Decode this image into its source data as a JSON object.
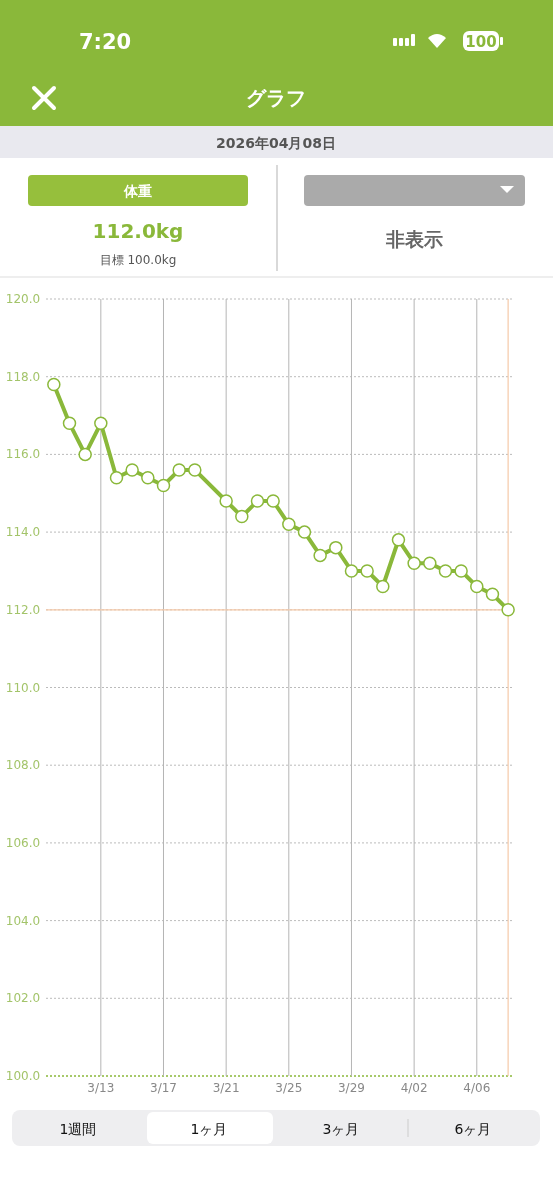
{
  "chart_data": {
    "type": "line",
    "title": "グラフ",
    "subtitle": "2026年04月08日",
    "annotations": [
      "7:20",
      "100",
      "体重",
      "112.0kg",
      "目標 100.0kg",
      "非表示",
      "1週間",
      "1ヶ月",
      "3ヶ月",
      "6ヶ月"
    ],
    "series": [
      {
        "color": "#8ab83a",
        "x": [
          "2026-03-10",
          "2026-03-11",
          "2026-03-12",
          "2026-03-13",
          "2026-03-14",
          "2026-03-15",
          "2026-03-16",
          "2026-03-17",
          "2026-03-18",
          "2026-03-19",
          "2026-03-21",
          "2026-03-22",
          "2026-03-23",
          "2026-03-24",
          "2026-03-25",
          "2026-03-26",
          "2026-03-27",
          "2026-03-28",
          "2026-03-29",
          "2026-03-30",
          "2026-03-31",
          "2026-04-01",
          "2026-04-02",
          "2026-04-03",
          "2026-04-04",
          "2026-04-05",
          "2026-04-06",
          "2026-04-07",
          "2026-04-08"
        ],
        "values": [
          117.8,
          116.8,
          116.0,
          116.8,
          115.4,
          115.6,
          115.4,
          115.2,
          115.6,
          115.6,
          114.8,
          114.4,
          114.8,
          114.8,
          114.2,
          114.0,
          113.4,
          113.6,
          113.0,
          113.0,
          112.6,
          113.8,
          113.2,
          113.2,
          113.0,
          113.0,
          112.6,
          112.4,
          112.0
        ]
      }
    ],
    "xlim": [
      "2026-03-09T12:00",
      "2026-04-08T09:00"
    ],
    "xticks": [
      {
        "value": "2026-03-13",
        "label": "3/13"
      },
      {
        "value": "2026-03-17",
        "label": "3/17"
      },
      {
        "value": "2026-03-21",
        "label": "3/21"
      },
      {
        "value": "2026-03-25",
        "label": "3/25"
      },
      {
        "value": "2026-03-29",
        "label": "3/29"
      },
      {
        "value": "2026-04-02",
        "label": "4/02"
      },
      {
        "value": "2026-04-06",
        "label": "4/06"
      }
    ],
    "ylim": [
      100,
      120
    ],
    "yticks": [
      {
        "value": 100,
        "label": "100.0"
      },
      {
        "value": 102,
        "label": "102.0"
      },
      {
        "value": 104,
        "label": "104.0"
      },
      {
        "value": 106,
        "label": "106.0"
      },
      {
        "value": 108,
        "label": "108.0"
      },
      {
        "value": 110,
        "label": "110.0"
      },
      {
        "value": 112,
        "label": "112.0"
      },
      {
        "value": 114,
        "label": "114.0"
      },
      {
        "value": 116,
        "label": "116.0"
      },
      {
        "value": 118,
        "label": "118.0"
      },
      {
        "value": 120,
        "label": "120.0"
      }
    ],
    "ref_lines": [
      {
        "axis": "y",
        "value": 112,
        "color": "#f5c9a8"
      },
      {
        "axis": "x",
        "value": "2026-04-08",
        "color": "#f5c9a8"
      }
    ],
    "grid": true,
    "marker": "circle",
    "line_style": "solid"
  }
}
